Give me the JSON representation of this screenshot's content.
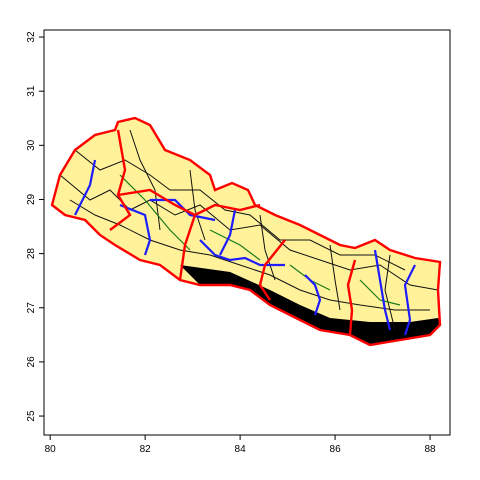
{
  "chart_data": {
    "type": "map",
    "xlim": [
      79.87,
      88.42
    ],
    "xticks": [
      80,
      82,
      84,
      86,
      88
    ],
    "ylim": [
      24.65,
      32.13
    ],
    "yticks": [
      25,
      26,
      27,
      28,
      29,
      30,
      31,
      32
    ]
  }
}
